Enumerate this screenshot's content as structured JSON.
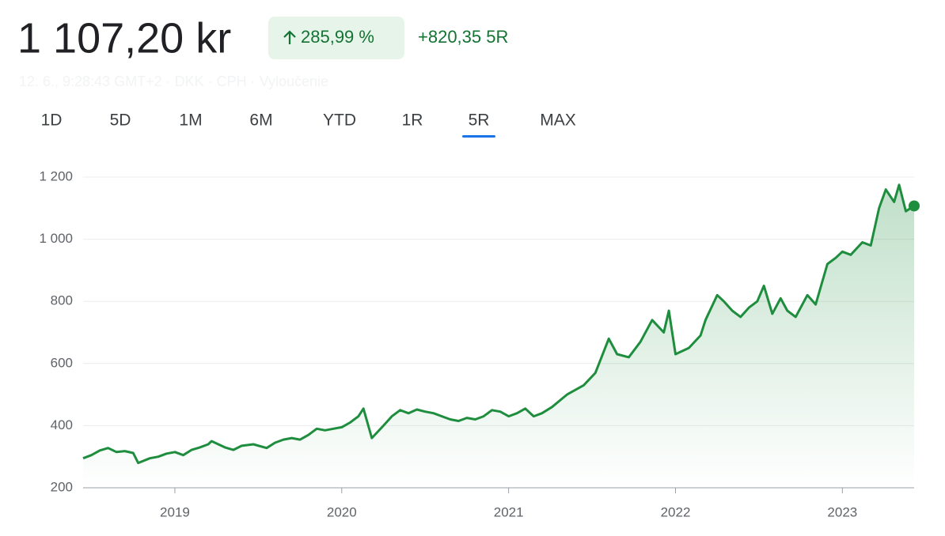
{
  "header": {
    "price": "1 107,20 kr",
    "change_percent": "285,99 %",
    "change_absolute": "+820,35 5R",
    "meta": "12. 6., 9:28:43 GMT+2 · DKK · CPH · Vyloučenie"
  },
  "tabs": [
    "1D",
    "5D",
    "1M",
    "6M",
    "YTD",
    "1R",
    "5R",
    "MAX"
  ],
  "chart_data": {
    "type": "line",
    "color": "#1e8e3e",
    "grid": true,
    "x": [
      2018.45,
      2018.5,
      2018.55,
      2018.6,
      2018.65,
      2018.7,
      2018.75,
      2018.78,
      2018.85,
      2018.9,
      2018.95,
      2019.0,
      2019.05,
      2019.1,
      2019.15,
      2019.2,
      2019.22,
      2019.3,
      2019.35,
      2019.4,
      2019.47,
      2019.55,
      2019.6,
      2019.65,
      2019.7,
      2019.75,
      2019.8,
      2019.85,
      2019.9,
      2019.95,
      2020.0,
      2020.05,
      2020.1,
      2020.13,
      2020.18,
      2020.25,
      2020.3,
      2020.35,
      2020.4,
      2020.45,
      2020.5,
      2020.55,
      2020.6,
      2020.65,
      2020.7,
      2020.75,
      2020.8,
      2020.85,
      2020.9,
      2020.95,
      2021.0,
      2021.05,
      2021.1,
      2021.15,
      2021.2,
      2021.26,
      2021.35,
      2021.45,
      2021.52,
      2021.6,
      2021.65,
      2021.72,
      2021.79,
      2021.86,
      2021.93,
      2021.96,
      2022.0,
      2022.08,
      2022.15,
      2022.18,
      2022.25,
      2022.29,
      2022.34,
      2022.39,
      2022.44,
      2022.49,
      2022.53,
      2022.58,
      2022.63,
      2022.67,
      2022.72,
      2022.79,
      2022.84,
      2022.91,
      2022.96,
      2023.0,
      2023.05,
      2023.12,
      2023.17,
      2023.22,
      2023.26,
      2023.31,
      2023.34,
      2023.38,
      2023.43
    ],
    "values": [
      295,
      305,
      320,
      328,
      315,
      318,
      312,
      280,
      295,
      300,
      310,
      315,
      305,
      322,
      330,
      340,
      350,
      330,
      322,
      335,
      340,
      328,
      345,
      355,
      360,
      355,
      370,
      390,
      385,
      390,
      395,
      410,
      430,
      455,
      360,
      400,
      430,
      450,
      440,
      452,
      445,
      440,
      430,
      420,
      415,
      425,
      420,
      430,
      450,
      445,
      430,
      440,
      455,
      430,
      440,
      460,
      500,
      530,
      570,
      680,
      630,
      620,
      670,
      740,
      700,
      770,
      630,
      650,
      690,
      740,
      820,
      800,
      770,
      750,
      780,
      800,
      850,
      760,
      810,
      770,
      750,
      820,
      790,
      920,
      940,
      960,
      950,
      990,
      980,
      1100,
      1160,
      1120,
      1175,
      1090,
      1107.2
    ],
    "xlim": [
      2018.45,
      2023.43
    ],
    "xticks": [
      2019,
      2020,
      2021,
      2022,
      2023
    ],
    "ylim": [
      200,
      1200
    ],
    "yticks": [
      200,
      400,
      600,
      800,
      {
        "value": 1000,
        "label": "1 000"
      },
      {
        "value": 1200,
        "label": "1 200"
      }
    ]
  }
}
